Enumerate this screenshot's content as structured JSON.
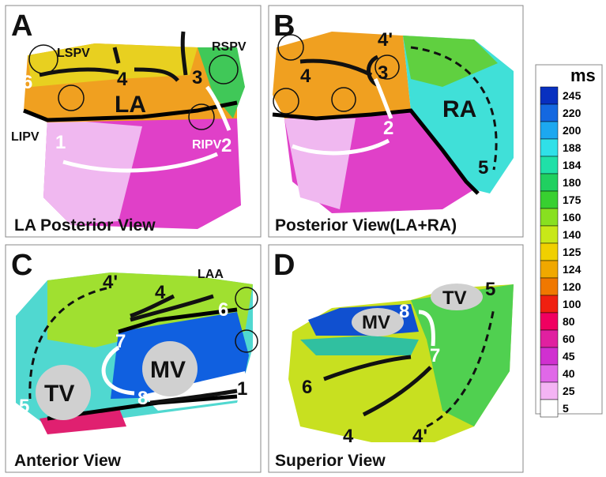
{
  "panels": [
    {
      "letter": "A",
      "caption": "LA Posterior View",
      "labels": [
        "LSPV",
        "RSPV",
        "6",
        "4",
        "3",
        "LA",
        "LIPV",
        "RIPV",
        "2",
        "1"
      ]
    },
    {
      "letter": "B",
      "caption": "Posterior View(LA+RA)",
      "labels": [
        "4",
        "3",
        "4'",
        "2",
        "RA",
        "5"
      ]
    },
    {
      "letter": "C",
      "caption": "Anterior View",
      "labels": [
        "4'",
        "4",
        "LAA",
        "6",
        "7",
        "MV",
        "TV",
        "8",
        "5",
        "1"
      ]
    },
    {
      "letter": "D",
      "caption": "Superior View",
      "labels": [
        "TV",
        "5",
        "MV",
        "8",
        "7",
        "6",
        "4",
        "4'"
      ]
    }
  ],
  "legend": {
    "unit": "ms",
    "items": [
      {
        "value": 245,
        "color": "#0830c0"
      },
      {
        "value": 220,
        "color": "#1468e0"
      },
      {
        "value": 200,
        "color": "#1ca8f0"
      },
      {
        "value": 188,
        "color": "#30e0e8"
      },
      {
        "value": 184,
        "color": "#20e0a8"
      },
      {
        "value": 180,
        "color": "#20d060"
      },
      {
        "value": 175,
        "color": "#38d030"
      },
      {
        "value": 160,
        "color": "#88e020"
      },
      {
        "value": 140,
        "color": "#c8e818"
      },
      {
        "value": 125,
        "color": "#f0d000"
      },
      {
        "value": 124,
        "color": "#f0a800"
      },
      {
        "value": 120,
        "color": "#f07800"
      },
      {
        "value": 100,
        "color": "#f02010"
      },
      {
        "value": 80,
        "color": "#f00060"
      },
      {
        "value": 60,
        "color": "#e020a0"
      },
      {
        "value": 45,
        "color": "#d030d0"
      },
      {
        "value": 40,
        "color": "#e068e8"
      },
      {
        "value": 25,
        "color": "#f4b4f4"
      },
      {
        "value": 5,
        "color": "#ffffff"
      }
    ]
  }
}
